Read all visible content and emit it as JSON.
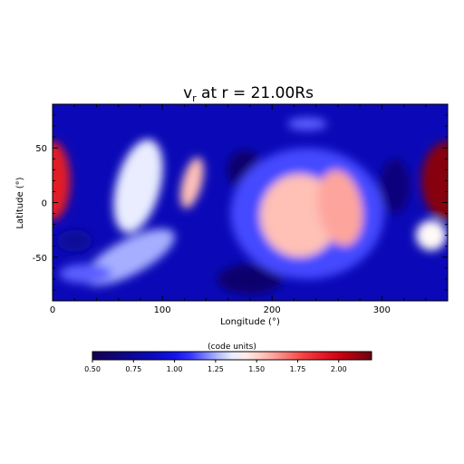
{
  "chart_data": {
    "type": "heatmap",
    "title_main": "v",
    "title_sub": "r",
    "title_rest": " at r = 21.00Rs",
    "xlabel": "Longitude (°)",
    "ylabel": "Latitude (°)",
    "xlim": [
      0,
      360
    ],
    "ylim": [
      -90,
      90
    ],
    "x_ticks": [
      0,
      100,
      200,
      300
    ],
    "y_ticks": [
      -50,
      0,
      50
    ],
    "colorbar": {
      "label": "(code units)",
      "range": [
        0.5,
        2.2
      ],
      "ticks": [
        "0.50",
        "0.75",
        "1.00",
        "1.25",
        "1.50",
        "1.75",
        "2.00"
      ],
      "tick_values": [
        0.5,
        0.75,
        1.0,
        1.25,
        1.5,
        1.75,
        2.0
      ]
    },
    "background_value": 0.85,
    "features": [
      {
        "lon": 360,
        "lat": 20,
        "w": 24,
        "h": 36,
        "value": 2.15,
        "rot": 0
      },
      {
        "lon": 0,
        "lat": 20,
        "w": 16,
        "h": 36,
        "value": 1.9,
        "rot": 0
      },
      {
        "lon": 78,
        "lat": 15,
        "w": 20,
        "h": 44,
        "value": 1.35,
        "rot": 15
      },
      {
        "lon": 70,
        "lat": -50,
        "w": 46,
        "h": 16,
        "value": 1.25,
        "rot": -28
      },
      {
        "lon": 30,
        "lat": -65,
        "w": 24,
        "h": 9,
        "value": 1.15,
        "rot": 0
      },
      {
        "lon": 127,
        "lat": 18,
        "w": 9,
        "h": 24,
        "value": 1.55,
        "rot": 15
      },
      {
        "lon": 195,
        "lat": 5,
        "w": 14,
        "h": 22,
        "value": 0.65,
        "rot": 0
      },
      {
        "lon": 175,
        "lat": 30,
        "w": 16,
        "h": 18,
        "value": 0.6,
        "rot": 0
      },
      {
        "lon": 180,
        "lat": -70,
        "w": 30,
        "h": 14,
        "value": 0.6,
        "rot": 0
      },
      {
        "lon": 312,
        "lat": 15,
        "w": 14,
        "h": 25,
        "value": 0.65,
        "rot": 0
      },
      {
        "lon": 232,
        "lat": -10,
        "w": 70,
        "h": 60,
        "value": 1.12,
        "rot": 0
      },
      {
        "lon": 225,
        "lat": -12,
        "w": 36,
        "h": 38,
        "value": 1.55,
        "rot": 0
      },
      {
        "lon": 262,
        "lat": -5,
        "w": 20,
        "h": 35,
        "value": 1.6,
        "rot": -10
      },
      {
        "lon": 232,
        "lat": 72,
        "w": 18,
        "h": 6,
        "value": 1.15,
        "rot": 0
      },
      {
        "lon": 345,
        "lat": -30,
        "w": 14,
        "h": 14,
        "value": 1.4,
        "rot": 0
      },
      {
        "lon": 20,
        "lat": -35,
        "w": 16,
        "h": 10,
        "value": 0.75,
        "rot": 0
      }
    ]
  }
}
